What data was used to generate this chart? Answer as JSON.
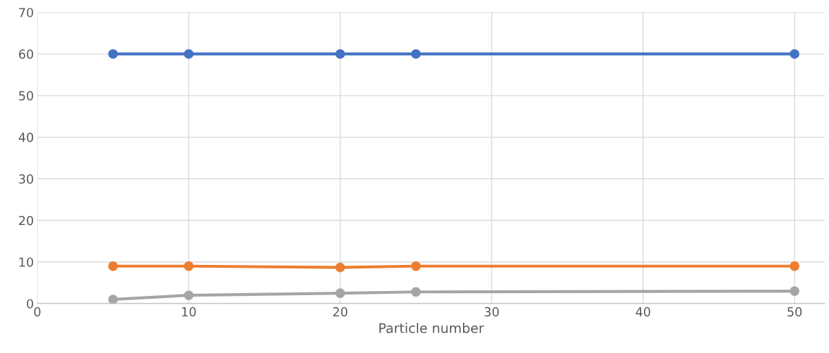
{
  "chart_data": {
    "type": "line",
    "xlabel": "Particle number",
    "x": [
      5,
      10,
      20,
      25,
      50
    ],
    "series": [
      {
        "color": "#4472c4",
        "values": [
          60,
          60,
          60,
          60,
          60
        ]
      },
      {
        "color": "#ed7d31",
        "values": [
          9,
          9,
          8.7,
          9,
          9
        ]
      },
      {
        "color": "#a5a5a5",
        "values": [
          1,
          2,
          2.5,
          2.8,
          3
        ]
      }
    ],
    "xlim": [
      0,
      52
    ],
    "xticks": [
      0,
      10,
      20,
      30,
      40,
      50
    ],
    "ylim": [
      0,
      70
    ],
    "yticks": [
      0,
      10,
      20,
      30,
      40,
      50,
      60,
      70
    ],
    "grid": true,
    "marker": "circle",
    "line_style": "solid"
  }
}
